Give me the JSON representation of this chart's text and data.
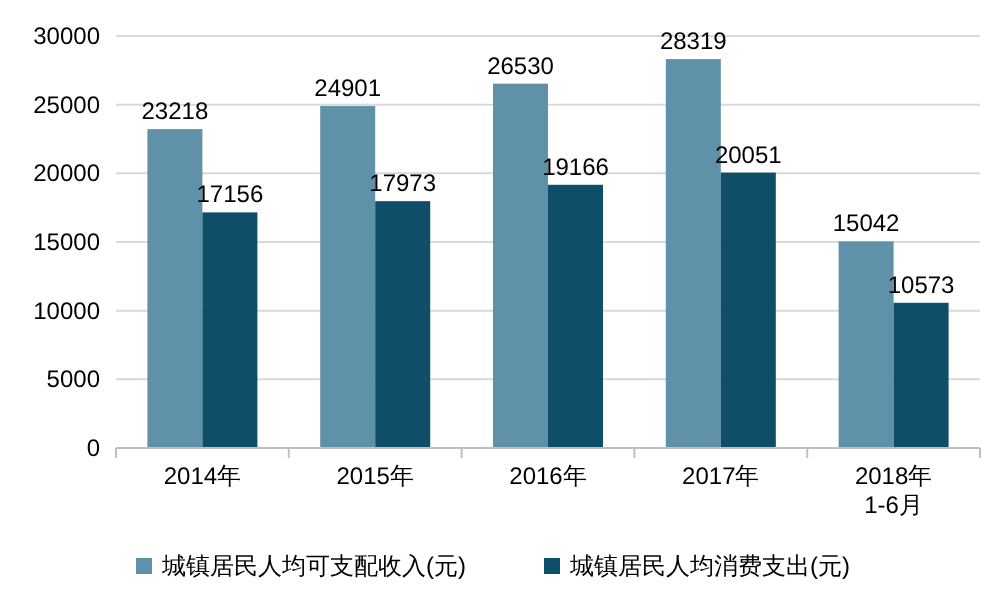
{
  "chart_data": {
    "type": "bar",
    "categories": [
      "2014年",
      "2015年",
      "2016年",
      "2017年",
      "2018年\n1-6月"
    ],
    "series": [
      {
        "name": "城镇居民人均可支配收入(元)",
        "color": "#5f91a8",
        "values": [
          23218,
          24901,
          26530,
          28319,
          15042
        ]
      },
      {
        "name": "城镇居民人均消费支出(元)",
        "color": "#0e4e69",
        "values": [
          17156,
          17973,
          19166,
          20051,
          10573
        ]
      }
    ],
    "ylim": [
      0,
      30000
    ],
    "yticks": [
      0,
      5000,
      10000,
      15000,
      20000,
      25000,
      30000
    ],
    "grid": "y",
    "legend": "bottom",
    "data_labels": true
  }
}
